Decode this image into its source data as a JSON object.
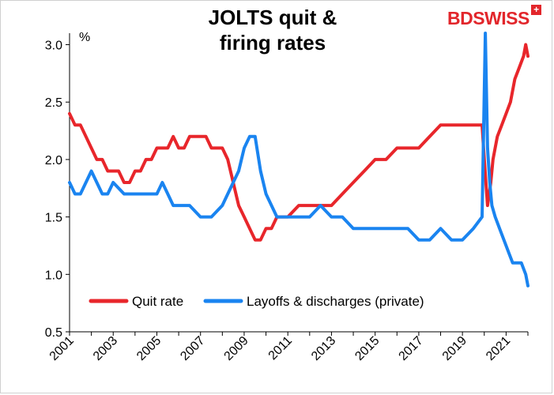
{
  "brand": {
    "name": "BDSWISS",
    "mark": "+"
  },
  "chart_data": {
    "type": "line",
    "title": "JOLTS quit & firing rates",
    "title_lines": [
      "JOLTS quit &",
      "firing rates"
    ],
    "ylabel": "%",
    "xlim": [
      2001,
      2022
    ],
    "ylim": [
      0.5,
      3.1
    ],
    "yticks": [
      "0.5",
      "1.0",
      "1.5",
      "2.0",
      "2.5",
      "3.0"
    ],
    "xticks": [
      "2001",
      "2003",
      "2005",
      "2007",
      "2009",
      "2011",
      "2013",
      "2015",
      "2017",
      "2019",
      "2021"
    ],
    "grid": false,
    "legend_position": "bottom-center",
    "series": [
      {
        "name": "Quit rate",
        "color": "#e8262b",
        "x": [
          2001.0,
          2001.25,
          2001.5,
          2001.75,
          2002.0,
          2002.25,
          2002.5,
          2002.75,
          2003.0,
          2003.25,
          2003.5,
          2003.75,
          2004.0,
          2004.25,
          2004.5,
          2004.75,
          2005.0,
          2005.25,
          2005.5,
          2005.75,
          2006.0,
          2006.25,
          2006.5,
          2006.75,
          2007.0,
          2007.25,
          2007.5,
          2007.75,
          2008.0,
          2008.25,
          2008.5,
          2008.75,
          2009.0,
          2009.25,
          2009.5,
          2009.75,
          2010.0,
          2010.25,
          2010.5,
          2010.75,
          2011.0,
          2011.5,
          2012.0,
          2012.5,
          2013.0,
          2013.5,
          2014.0,
          2014.5,
          2015.0,
          2015.5,
          2016.0,
          2016.5,
          2017.0,
          2017.5,
          2018.0,
          2018.5,
          2019.0,
          2019.5,
          2019.9,
          2020.0,
          2020.15,
          2020.3,
          2020.4,
          2020.6,
          2020.8,
          2021.0,
          2021.2,
          2021.4,
          2021.6,
          2021.8,
          2021.9,
          2022.0
        ],
        "values": [
          2.4,
          2.3,
          2.3,
          2.2,
          2.1,
          2.0,
          2.0,
          1.9,
          1.9,
          1.9,
          1.8,
          1.8,
          1.9,
          1.9,
          2.0,
          2.0,
          2.1,
          2.1,
          2.1,
          2.2,
          2.1,
          2.1,
          2.2,
          2.2,
          2.2,
          2.2,
          2.1,
          2.1,
          2.1,
          2.0,
          1.8,
          1.6,
          1.5,
          1.4,
          1.3,
          1.3,
          1.4,
          1.4,
          1.5,
          1.5,
          1.5,
          1.6,
          1.6,
          1.6,
          1.6,
          1.7,
          1.8,
          1.9,
          2.0,
          2.0,
          2.1,
          2.1,
          2.1,
          2.2,
          2.3,
          2.3,
          2.3,
          2.3,
          2.3,
          2.0,
          1.6,
          1.8,
          2.0,
          2.2,
          2.3,
          2.4,
          2.5,
          2.7,
          2.8,
          2.9,
          3.0,
          2.9
        ]
      },
      {
        "name": "Layoffs & discharges (private)",
        "color": "#1a84f0",
        "x": [
          2001.0,
          2001.25,
          2001.5,
          2001.75,
          2002.0,
          2002.25,
          2002.5,
          2002.75,
          2003.0,
          2003.5,
          2004.0,
          2004.5,
          2005.0,
          2005.25,
          2005.5,
          2005.75,
          2006.0,
          2006.5,
          2007.0,
          2007.5,
          2008.0,
          2008.25,
          2008.5,
          2008.75,
          2009.0,
          2009.25,
          2009.5,
          2009.75,
          2010.0,
          2010.5,
          2011.0,
          2011.5,
          2012.0,
          2012.5,
          2013.0,
          2013.5,
          2014.0,
          2014.5,
          2015.0,
          2015.5,
          2016.0,
          2016.5,
          2017.0,
          2017.5,
          2018.0,
          2018.5,
          2019.0,
          2019.5,
          2019.9,
          2020.05,
          2020.15,
          2020.25,
          2020.35,
          2020.5,
          2020.7,
          2020.9,
          2021.1,
          2021.3,
          2021.5,
          2021.7,
          2021.9,
          2022.0
        ],
        "values": [
          1.8,
          1.7,
          1.7,
          1.8,
          1.9,
          1.8,
          1.7,
          1.7,
          1.8,
          1.7,
          1.7,
          1.7,
          1.7,
          1.8,
          1.7,
          1.6,
          1.6,
          1.6,
          1.5,
          1.5,
          1.6,
          1.7,
          1.8,
          1.9,
          2.1,
          2.2,
          2.2,
          1.9,
          1.7,
          1.5,
          1.5,
          1.5,
          1.5,
          1.6,
          1.5,
          1.5,
          1.4,
          1.4,
          1.4,
          1.4,
          1.4,
          1.4,
          1.3,
          1.3,
          1.4,
          1.3,
          1.3,
          1.4,
          1.5,
          3.1,
          2.1,
          1.8,
          1.6,
          1.5,
          1.4,
          1.3,
          1.2,
          1.1,
          1.1,
          1.1,
          1.0,
          0.9
        ]
      }
    ]
  }
}
